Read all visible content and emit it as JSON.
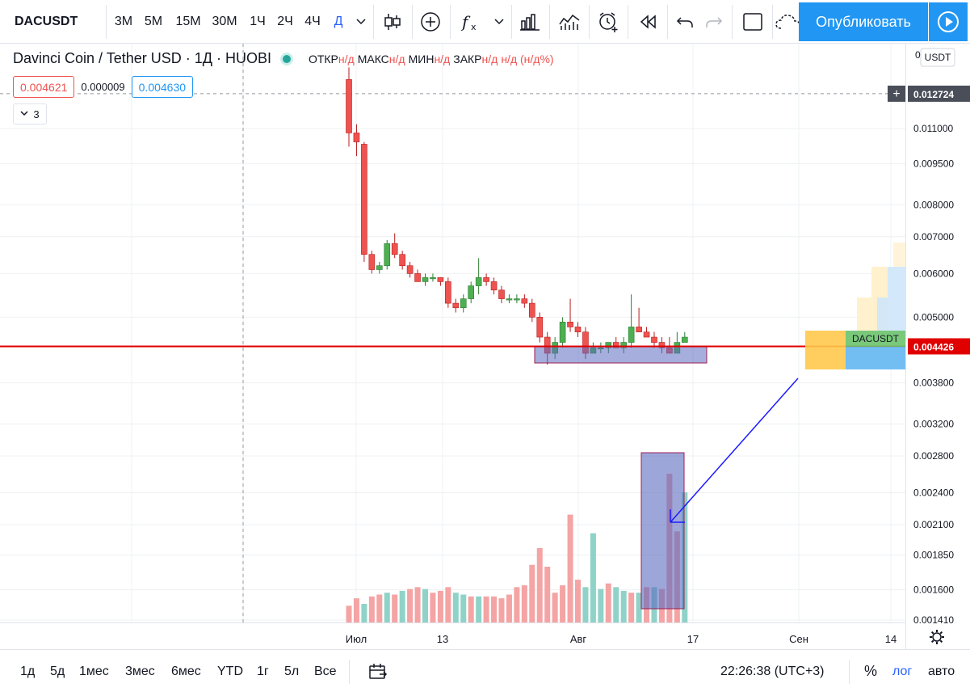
{
  "toolbar": {
    "symbol": "DACUSDT",
    "intervals": [
      "3М",
      "5М",
      "15М",
      "30М",
      "1Ч",
      "2Ч",
      "4Ч",
      "Д"
    ],
    "active_interval": "Д",
    "publish_label": "Опубликовать",
    "icons": [
      "chevron-down-icon",
      "candles-icon",
      "plus-circle-icon",
      "fx-icon",
      "chevron-down-icon",
      "bars-icon",
      "compare-icon",
      "alert-icon",
      "replay-icon",
      "undo-icon",
      "redo-icon",
      "layout-icon",
      "cloud-icon",
      "play-icon"
    ]
  },
  "legend": {
    "title": "Davinci Coin / Tether USD · 1Д · HUOBI",
    "o_label": "ОТКР",
    "o_val": "н/д",
    "h_label": "МАКС",
    "h_val": "н/д",
    "l_label": "МИН",
    "l_val": "н/д",
    "c_label": "ЗАКР",
    "c_val": "н/д",
    "change": "н/д (н/д%)",
    "bid": "0.004621",
    "spread": "0.000009",
    "ask": "0.004630",
    "indicators_count": "3"
  },
  "price_scale": {
    "currency": "USDT",
    "crosshair_price": "0.012724",
    "last_price": "0.004426",
    "top_tick": "0"
  },
  "time_scale": {
    "ticks": [
      "Июл",
      "13",
      "Авг",
      "17",
      "Сен",
      "14"
    ]
  },
  "bottombar": {
    "ranges": [
      "1д",
      "5д",
      "1мес",
      "3мес",
      "6мес",
      "YTD",
      "1г",
      "5л",
      "Все"
    ],
    "clock": "22:26:38 (UTC+3)",
    "percent": "%",
    "log": "лог",
    "auto": "авто"
  },
  "chart_data": {
    "type": "candlestick",
    "symbol": "DACUSDT",
    "scale": "log",
    "y_ticks": [
      0.011,
      0.0095,
      0.008,
      0.007,
      0.006,
      0.005,
      0.0038,
      0.0032,
      0.0028,
      0.0024,
      0.0021,
      0.00185,
      0.0016,
      0.00141
    ],
    "y_tick_labels": [
      "0.011000",
      "0.009500",
      "0.008000",
      "0.007000",
      "0.006000",
      "0.005000",
      "0.003800",
      "0.003200",
      "0.002800",
      "0.002400",
      "0.002100",
      "0.001850",
      "0.001600",
      "0.001410"
    ],
    "ylim": [
      0.00139,
      0.0142
    ],
    "last_price": 0.004426,
    "crosshair_price": 0.012724,
    "candles": [
      {
        "o": 0.0135,
        "h": 0.0142,
        "l": 0.0102,
        "c": 0.0108
      },
      {
        "o": 0.0108,
        "h": 0.0112,
        "l": 0.0098,
        "c": 0.0104
      },
      {
        "o": 0.0103,
        "h": 0.0104,
        "l": 0.0063,
        "c": 0.0065
      },
      {
        "o": 0.0065,
        "h": 0.0066,
        "l": 0.006,
        "c": 0.0061
      },
      {
        "o": 0.0061,
        "h": 0.0063,
        "l": 0.006,
        "c": 0.0062
      },
      {
        "o": 0.0062,
        "h": 0.0069,
        "l": 0.0061,
        "c": 0.0068
      },
      {
        "o": 0.0068,
        "h": 0.0071,
        "l": 0.0064,
        "c": 0.0065
      },
      {
        "o": 0.0065,
        "h": 0.0066,
        "l": 0.0061,
        "c": 0.0062
      },
      {
        "o": 0.0062,
        "h": 0.0063,
        "l": 0.0059,
        "c": 0.006
      },
      {
        "o": 0.006,
        "h": 0.0061,
        "l": 0.0058,
        "c": 0.0058
      },
      {
        "o": 0.0058,
        "h": 0.006,
        "l": 0.0057,
        "c": 0.0059
      },
      {
        "o": 0.0059,
        "h": 0.006,
        "l": 0.0058,
        "c": 0.0059
      },
      {
        "o": 0.0059,
        "h": 0.0059,
        "l": 0.0057,
        "c": 0.0058
      },
      {
        "o": 0.0058,
        "h": 0.0059,
        "l": 0.0052,
        "c": 0.0053
      },
      {
        "o": 0.0053,
        "h": 0.0054,
        "l": 0.0051,
        "c": 0.0052
      },
      {
        "o": 0.0052,
        "h": 0.0055,
        "l": 0.0051,
        "c": 0.0054
      },
      {
        "o": 0.0054,
        "h": 0.0058,
        "l": 0.0053,
        "c": 0.0057
      },
      {
        "o": 0.0057,
        "h": 0.0064,
        "l": 0.0055,
        "c": 0.0059
      },
      {
        "o": 0.0059,
        "h": 0.006,
        "l": 0.0057,
        "c": 0.0058
      },
      {
        "o": 0.0058,
        "h": 0.0059,
        "l": 0.0055,
        "c": 0.0056
      },
      {
        "o": 0.0056,
        "h": 0.0057,
        "l": 0.0053,
        "c": 0.0054
      },
      {
        "o": 0.0054,
        "h": 0.0055,
        "l": 0.0053,
        "c": 0.0054
      },
      {
        "o": 0.0054,
        "h": 0.0055,
        "l": 0.0053,
        "c": 0.0054
      },
      {
        "o": 0.0054,
        "h": 0.0055,
        "l": 0.0052,
        "c": 0.0053
      },
      {
        "o": 0.0053,
        "h": 0.0054,
        "l": 0.0049,
        "c": 0.005
      },
      {
        "o": 0.005,
        "h": 0.0051,
        "l": 0.0045,
        "c": 0.0046
      },
      {
        "o": 0.0046,
        "h": 0.0047,
        "l": 0.0041,
        "c": 0.0043
      },
      {
        "o": 0.0043,
        "h": 0.0046,
        "l": 0.0042,
        "c": 0.0045
      },
      {
        "o": 0.0045,
        "h": 0.005,
        "l": 0.0044,
        "c": 0.0049
      },
      {
        "o": 0.0049,
        "h": 0.0054,
        "l": 0.0047,
        "c": 0.0048
      },
      {
        "o": 0.0048,
        "h": 0.0049,
        "l": 0.0046,
        "c": 0.0047
      },
      {
        "o": 0.0047,
        "h": 0.0048,
        "l": 0.0042,
        "c": 0.0043
      },
      {
        "o": 0.0043,
        "h": 0.0045,
        "l": 0.0043,
        "c": 0.0044
      },
      {
        "o": 0.0044,
        "h": 0.0045,
        "l": 0.0043,
        "c": 0.0044
      },
      {
        "o": 0.0044,
        "h": 0.0045,
        "l": 0.0043,
        "c": 0.0045
      },
      {
        "o": 0.0045,
        "h": 0.0046,
        "l": 0.0044,
        "c": 0.0044
      },
      {
        "o": 0.0044,
        "h": 0.0046,
        "l": 0.0043,
        "c": 0.0045
      },
      {
        "o": 0.0045,
        "h": 0.0055,
        "l": 0.0044,
        "c": 0.0048
      },
      {
        "o": 0.0048,
        "h": 0.0052,
        "l": 0.0047,
        "c": 0.0047
      },
      {
        "o": 0.0047,
        "h": 0.0048,
        "l": 0.0046,
        "c": 0.0046
      },
      {
        "o": 0.0046,
        "h": 0.0047,
        "l": 0.0044,
        "c": 0.0045
      },
      {
        "o": 0.0045,
        "h": 0.0046,
        "l": 0.0043,
        "c": 0.0044
      },
      {
        "o": 0.0044,
        "h": 0.0046,
        "l": 0.0043,
        "c": 0.0043
      },
      {
        "o": 0.0043,
        "h": 0.0047,
        "l": 0.0043,
        "c": 0.0045
      },
      {
        "o": 0.0045,
        "h": 0.0047,
        "l": 0.0045,
        "c": 0.0046
      }
    ],
    "volumes": [
      {
        "v": 0.9,
        "up": false
      },
      {
        "v": 1.3,
        "up": false
      },
      {
        "v": 1.0,
        "up": true
      },
      {
        "v": 1.4,
        "up": false
      },
      {
        "v": 1.5,
        "up": false
      },
      {
        "v": 1.6,
        "up": true
      },
      {
        "v": 1.5,
        "up": false
      },
      {
        "v": 1.7,
        "up": true
      },
      {
        "v": 1.8,
        "up": false
      },
      {
        "v": 1.9,
        "up": false
      },
      {
        "v": 1.8,
        "up": true
      },
      {
        "v": 1.6,
        "up": false
      },
      {
        "v": 1.7,
        "up": false
      },
      {
        "v": 1.9,
        "up": false
      },
      {
        "v": 1.6,
        "up": true
      },
      {
        "v": 1.5,
        "up": true
      },
      {
        "v": 1.4,
        "up": false
      },
      {
        "v": 1.4,
        "up": true
      },
      {
        "v": 1.4,
        "up": false
      },
      {
        "v": 1.4,
        "up": false
      },
      {
        "v": 1.3,
        "up": false
      },
      {
        "v": 1.5,
        "up": false
      },
      {
        "v": 1.9,
        "up": false
      },
      {
        "v": 2.0,
        "up": false
      },
      {
        "v": 3.1,
        "up": false
      },
      {
        "v": 4.0,
        "up": false
      },
      {
        "v": 3.0,
        "up": false
      },
      {
        "v": 1.6,
        "up": false
      },
      {
        "v": 2.0,
        "up": false
      },
      {
        "v": 5.8,
        "up": false
      },
      {
        "v": 2.3,
        "up": false
      },
      {
        "v": 1.9,
        "up": true
      },
      {
        "v": 4.8,
        "up": true
      },
      {
        "v": 1.8,
        "up": true
      },
      {
        "v": 2.1,
        "up": false
      },
      {
        "v": 1.9,
        "up": true
      },
      {
        "v": 1.7,
        "up": true
      },
      {
        "v": 1.6,
        "up": false
      },
      {
        "v": 1.6,
        "up": true
      },
      {
        "v": 1.9,
        "up": false
      },
      {
        "v": 1.9,
        "up": true
      },
      {
        "v": 1.8,
        "up": false
      },
      {
        "v": 8.0,
        "up": false
      },
      {
        "v": 4.9,
        "up": false
      },
      {
        "v": 7.0,
        "up": true
      }
    ],
    "volume_profile_label": "DACUSDT",
    "annotations": [
      "price range box",
      "volume highlight box",
      "arrow"
    ]
  },
  "colors": {
    "up": "#4caf50",
    "down": "#ef5350",
    "up_volume": "#8fd2c8",
    "down_volume": "#f4a4a4",
    "last_price_line": "#e00000",
    "accent": "#2196f3",
    "box_fill": "#5b6bbf",
    "box_border": "#9c1f55",
    "arrow": "#1a1aff"
  }
}
